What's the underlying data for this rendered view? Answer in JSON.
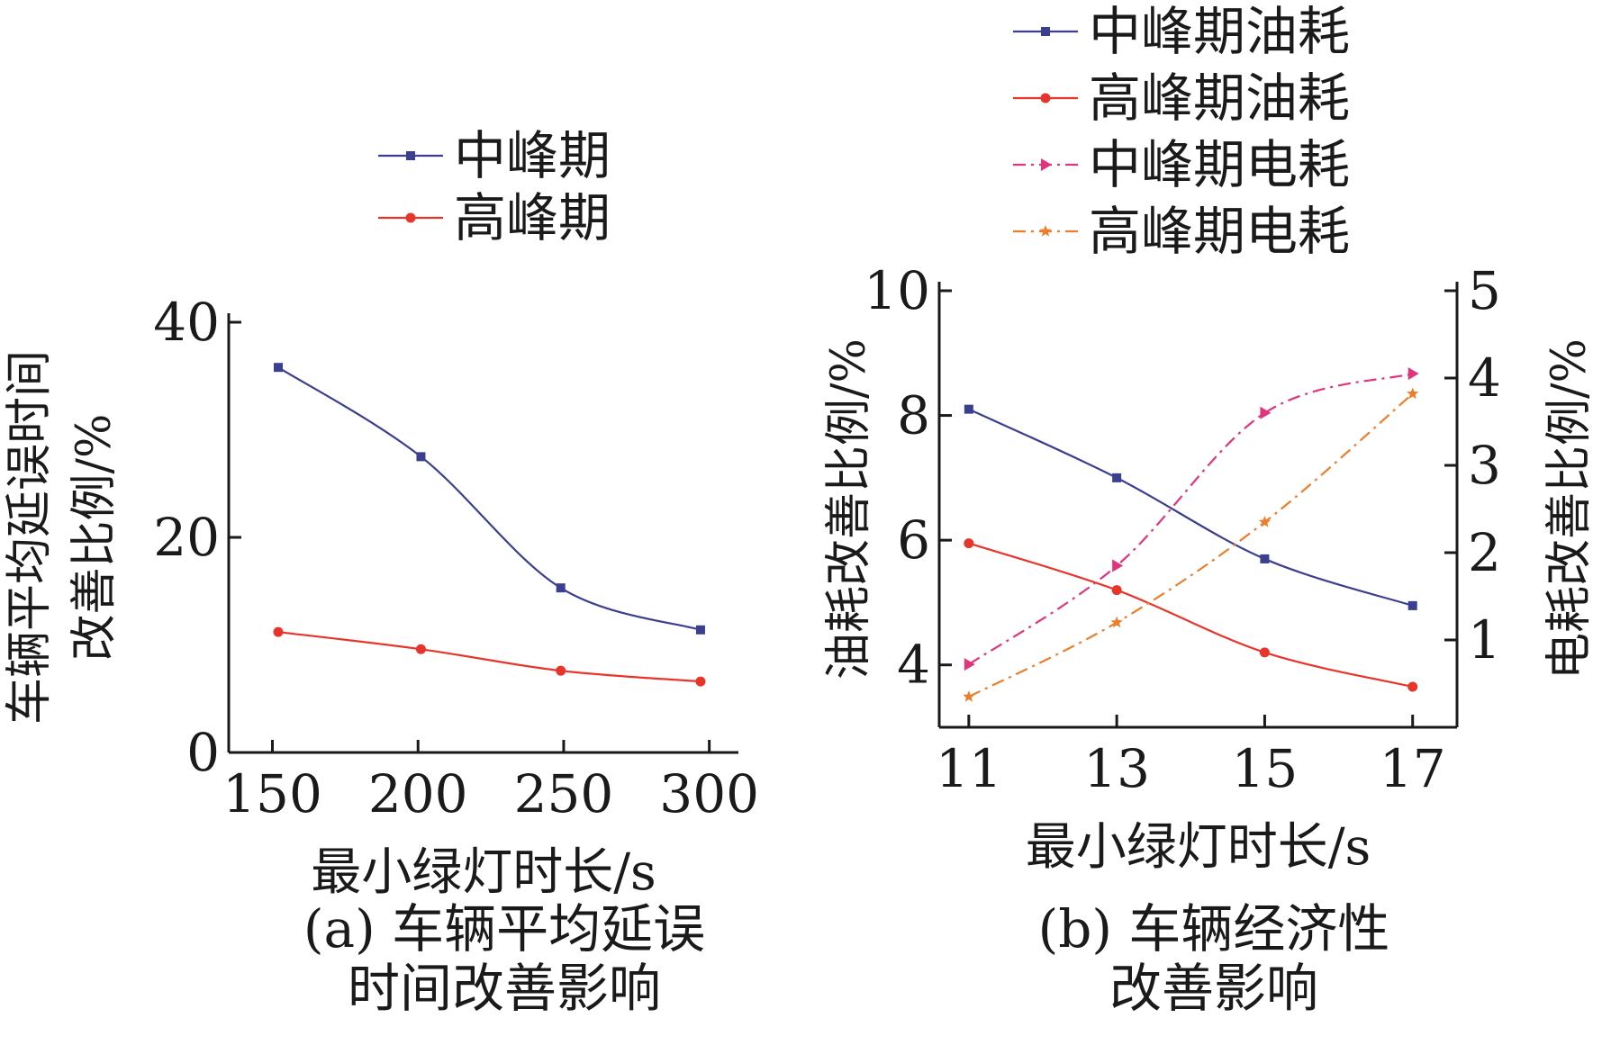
{
  "chart_data": [
    {
      "type": "line",
      "caption": [
        "(a) 车辆平均延误",
        "时间改善影响"
      ],
      "xlabel": "最小绿灯时长/s",
      "ylabel": [
        "车辆平均延误时间",
        "改善比例/%"
      ],
      "x": [
        150,
        200,
        250,
        300
      ],
      "xticks": [
        150,
        200,
        250,
        300
      ],
      "xlim": [
        135,
        310
      ],
      "ylim": [
        0,
        40
      ],
      "yticks": [
        0,
        20,
        40
      ],
      "legend_position": "top",
      "series": [
        {
          "name": "中峰期",
          "color": "#3a3f8f",
          "marker": "square",
          "x": [
            152,
            201,
            249,
            297
          ],
          "values": [
            35.8,
            27.5,
            15.3,
            11.4
          ]
        },
        {
          "name": "高峰期",
          "color": "#e8352b",
          "marker": "circle",
          "x": [
            152,
            201,
            249,
            297
          ],
          "values": [
            11.2,
            9.6,
            7.6,
            6.6
          ]
        }
      ]
    },
    {
      "type": "line",
      "caption": [
        "(b) 车辆经济性",
        "改善影响"
      ],
      "xlabel": "最小绿灯时长/s",
      "ylabel": "油耗改善比例/%",
      "y2label": "电耗改善比例/%",
      "x": [
        11,
        13,
        15,
        17
      ],
      "xticks": [
        11,
        13,
        15,
        17
      ],
      "xlim": [
        10.6,
        17.6
      ],
      "ylim": [
        3,
        10
      ],
      "yticks": [
        4,
        6,
        8,
        10
      ],
      "y2lim": [
        0,
        5
      ],
      "y2ticks": [
        1,
        2,
        3,
        4,
        5
      ],
      "legend_position": "top",
      "series": [
        {
          "name": "中峰期油耗",
          "axis": "left",
          "color": "#3a3f8f",
          "marker": "square",
          "dash": "solid",
          "values": [
            8.1,
            7.0,
            5.7,
            4.95
          ]
        },
        {
          "name": "高峰期油耗",
          "axis": "left",
          "color": "#e8352b",
          "marker": "circle",
          "dash": "solid",
          "values": [
            5.95,
            5.2,
            4.2,
            3.65
          ]
        },
        {
          "name": "中峰期电耗",
          "axis": "right",
          "color": "#e0357d",
          "marker": "triangle-right",
          "dash": "dashdot",
          "values": [
            0.72,
            1.85,
            3.6,
            4.05
          ]
        },
        {
          "name": "高峰期电耗",
          "axis": "right",
          "color": "#ee7d2a",
          "marker": "star",
          "dash": "dashdot",
          "values": [
            0.35,
            1.2,
            2.35,
            3.82
          ]
        }
      ]
    }
  ]
}
